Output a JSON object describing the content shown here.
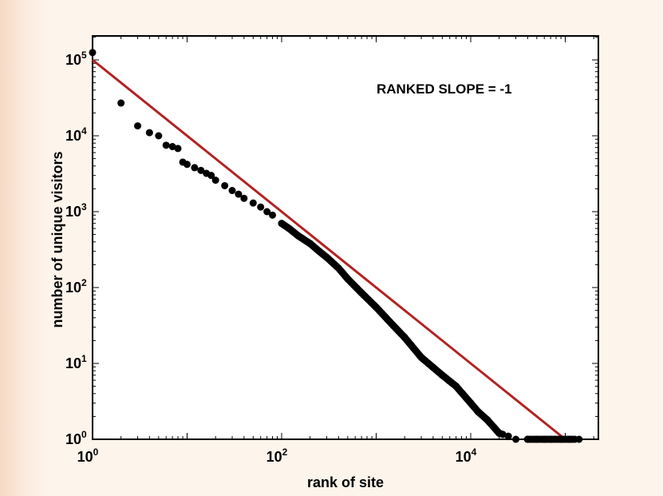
{
  "chart_data": {
    "type": "scatter",
    "xscale": "log",
    "yscale": "log",
    "xlim": [
      1,
      200000
    ],
    "ylim": [
      1,
      160000
    ],
    "xlabel": "rank of site",
    "ylabel": "number of unique visitors",
    "annotation": "RANKED SLOPE = -1",
    "x_ticks": [
      {
        "base": "10",
        "exp": "0"
      },
      {
        "base": "10",
        "exp": "2"
      },
      {
        "base": "10",
        "exp": "4"
      }
    ],
    "y_ticks": [
      {
        "base": "10",
        "exp": "0"
      },
      {
        "base": "10",
        "exp": "1"
      },
      {
        "base": "10",
        "exp": "2"
      },
      {
        "base": "10",
        "exp": "3"
      },
      {
        "base": "10",
        "exp": "4"
      },
      {
        "base": "10",
        "exp": "5"
      }
    ],
    "series": [
      {
        "marker_color": "#000000",
        "x": [
          1,
          2,
          3,
          4,
          5,
          6,
          7,
          8,
          9,
          10,
          12,
          14,
          16,
          18,
          20,
          25,
          30,
          35,
          40,
          50,
          60,
          70,
          80,
          100,
          120,
          150,
          200,
          250,
          300,
          400,
          500,
          700,
          1000,
          1500,
          2000,
          3000,
          5000,
          7000,
          10000,
          12000,
          15000,
          20000,
          25000,
          30000,
          40000,
          50000,
          60000,
          70000,
          90000,
          110000,
          140000
        ],
        "y": [
          125000,
          27000,
          13500,
          11000,
          10000,
          7500,
          7200,
          6800,
          4500,
          4200,
          3800,
          3500,
          3200,
          3000,
          2600,
          2200,
          1900,
          1700,
          1500,
          1300,
          1150,
          1000,
          900,
          700,
          600,
          480,
          380,
          300,
          250,
          180,
          130,
          85,
          55,
          32,
          22,
          12,
          7,
          5,
          3,
          2.3,
          1.8,
          1.2,
          1.1,
          1,
          1,
          1,
          1,
          1,
          1,
          1,
          1
        ]
      },
      {
        "line_color": "#b22222",
        "fit_slope": -1,
        "x": [
          1,
          100000
        ],
        "y": [
          100000,
          1
        ]
      }
    ],
    "grid": false
  }
}
